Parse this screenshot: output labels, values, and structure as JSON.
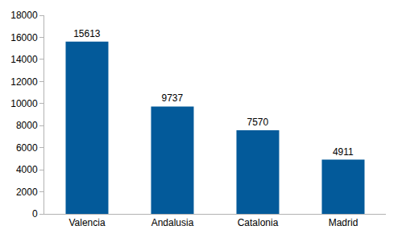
{
  "chart_data": {
    "type": "bar",
    "categories": [
      "Valencia",
      "Andalusia",
      "Catalonia",
      "Madrid"
    ],
    "values": [
      15613,
      9737,
      7570,
      4911
    ],
    "color": "#035a9a",
    "ylim": [
      0,
      18000
    ],
    "yticks": [
      0,
      2000,
      4000,
      6000,
      8000,
      10000,
      12000,
      14000,
      16000,
      18000
    ],
    "grid": false,
    "data_labels": true
  }
}
